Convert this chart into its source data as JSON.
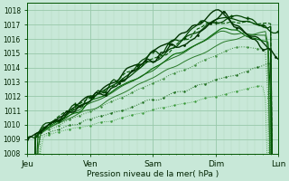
{
  "bg_color": "#c8e8d8",
  "plot_bg_color": "#c8e8d8",
  "grid_major_color": "#98c8aa",
  "grid_minor_color": "#b0d8be",
  "line_dark": "#004400",
  "line_mid": "#1a6b1a",
  "line_light": "#3a9a3a",
  "xlabel": "Pression niveau de la mer( hPa )",
  "xlim": [
    0,
    96
  ],
  "ylim": [
    1008,
    1018.5
  ],
  "yticks": [
    1008,
    1009,
    1010,
    1011,
    1012,
    1013,
    1014,
    1015,
    1016,
    1017,
    1018
  ],
  "xtick_positions": [
    0,
    24,
    48,
    72,
    96
  ],
  "xtick_labels": [
    "Jeu",
    "Ven",
    "Sam",
    "Dim",
    "Lun"
  ]
}
